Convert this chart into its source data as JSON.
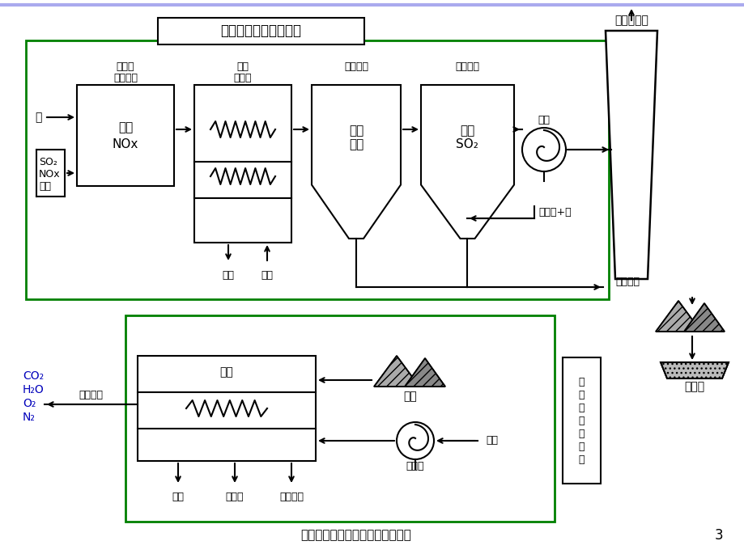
{
  "title": "燃煤蒸汽电厂的大气污染控制系统",
  "bg_color": "#ffffff",
  "green_color": "#008000",
  "blue_text_color": "#0000bb",
  "black": "#000000",
  "top_box_label": "粉尘、气态污染物控制",
  "atm_label": "大气排放物",
  "solid_label": "固体废物",
  "landfill_label": "填埋场",
  "nox_box_line1": "去除",
  "nox_box_line2": "NOx",
  "flyash_line1": "去除",
  "flyash_line2": "飞灰",
  "so2_line1": "去除",
  "so2_line2": "SO₂",
  "selective_line1": "选择性",
  "selective_line2": "催化还原",
  "air_heater_line1": "空气",
  "air_heater_line2": "预热器",
  "electro_label": "电除尘器",
  "fgd_label": "烟气脱硫",
  "fan_label": "风机",
  "nh3_label": "氨",
  "so2_input_line1": "SO₂",
  "so2_input_line2": "NOx",
  "so2_input_line3": "飞灰",
  "limestone_label": "石灰石+水",
  "boiler_top_label": "锅炉",
  "air_top_label": "空气",
  "boiler_bottom_label": "锅炉",
  "coal_label": "煤炭",
  "blower_label": "鼓风机",
  "air_bottom_label": "空气",
  "exhaust_label": "燃烧尾气",
  "bottom_ash_label": "底灰",
  "cooling_label": "冷却水",
  "steam_label": "蒸汽发电",
  "co2_line1": "CO₂",
  "co2_line2": "H₂O",
  "co2_line3": "O₂",
  "co2_line4": "N₂",
  "pollution_ctrl": "污\n染\n物\n生\n成\n控\n制",
  "page_num": "3"
}
